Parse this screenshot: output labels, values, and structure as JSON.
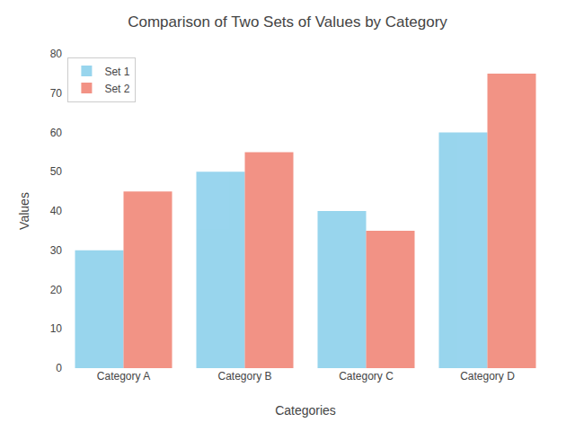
{
  "chart_data": {
    "type": "bar",
    "title": "Comparison of Two Sets of Values by Category",
    "xlabel": "Categories",
    "ylabel": "Values",
    "categories": [
      "Category A",
      "Category B",
      "Category C",
      "Category D"
    ],
    "series": [
      {
        "name": "Set 1",
        "color": "#87CEEB",
        "values": [
          30,
          50,
          40,
          60
        ]
      },
      {
        "name": "Set 2",
        "color": "#F08070",
        "values": [
          45,
          55,
          35,
          75
        ]
      }
    ],
    "ylim": [
      0,
      80
    ],
    "yticks": [
      0,
      10,
      20,
      30,
      40,
      50,
      60,
      70,
      80
    ],
    "grid": false,
    "legend": "upper left"
  }
}
